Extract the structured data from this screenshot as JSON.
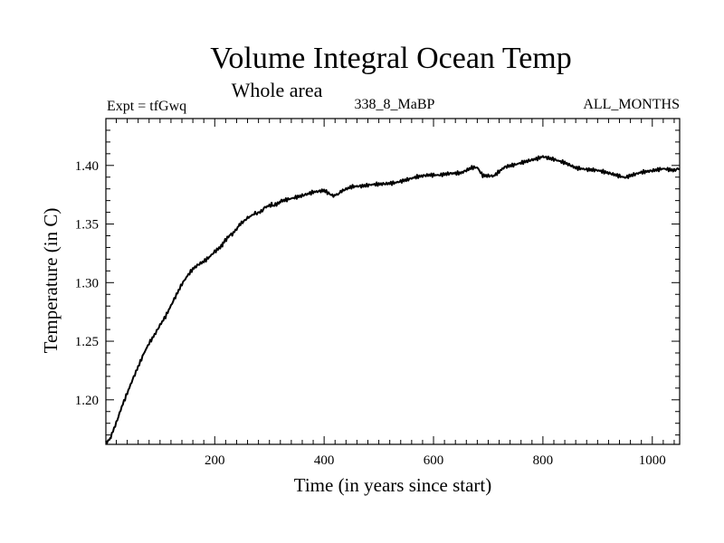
{
  "colors": {
    "line": "#000000",
    "frame": "#000000",
    "background": "#ffffff"
  },
  "chart_data": {
    "type": "line",
    "title": "Volume Integral Ocean Temp",
    "subtitle": "Whole area",
    "expt_label": "Expt = tfGwq",
    "run_label": "338_8_MaBP",
    "months_label": "ALL_MONTHS",
    "xlabel": "Time (in years since start)",
    "ylabel": "Temperature (in C)",
    "xlim": [
      1,
      1050
    ],
    "ylim": [
      1.162,
      1.44
    ],
    "x_ticks": [
      200,
      400,
      600,
      800,
      1000
    ],
    "x_tick_labels": [
      "200",
      "400",
      "600",
      "800",
      "1000"
    ],
    "y_ticks": [
      1.2,
      1.25,
      1.3,
      1.35,
      1.4
    ],
    "y_tick_labels": [
      "1.20",
      "1.25",
      "1.30",
      "1.35",
      "1.40"
    ],
    "x_minor_step": 20,
    "y_minor_step": 0.01,
    "grid": false,
    "series": [
      {
        "name": "Volume Integral Ocean Temp",
        "x": [
          1,
          10,
          20,
          30,
          40,
          50,
          60,
          70,
          80,
          90,
          100,
          110,
          120,
          130,
          140,
          150,
          160,
          170,
          180,
          190,
          200,
          215,
          230,
          245,
          260,
          275,
          290,
          305,
          320,
          340,
          360,
          380,
          400,
          415,
          430,
          450,
          470,
          490,
          510,
          530,
          550,
          570,
          590,
          610,
          630,
          650,
          670,
          680,
          690,
          710,
          730,
          750,
          770,
          790,
          800,
          820,
          840,
          860,
          880,
          900,
          920,
          940,
          950,
          960,
          980,
          1000,
          1020,
          1040,
          1050
        ],
        "y": [
          1.164,
          1.168,
          1.18,
          1.194,
          1.206,
          1.218,
          1.229,
          1.24,
          1.249,
          1.256,
          1.264,
          1.271,
          1.28,
          1.289,
          1.298,
          1.305,
          1.311,
          1.315,
          1.318,
          1.322,
          1.327,
          1.333,
          1.341,
          1.349,
          1.355,
          1.359,
          1.363,
          1.366,
          1.369,
          1.372,
          1.375,
          1.378,
          1.379,
          1.374,
          1.377,
          1.381,
          1.382,
          1.384,
          1.385,
          1.386,
          1.388,
          1.39,
          1.391,
          1.391,
          1.393,
          1.394,
          1.399,
          1.399,
          1.392,
          1.391,
          1.398,
          1.4,
          1.403,
          1.406,
          1.408,
          1.406,
          1.403,
          1.398,
          1.396,
          1.395,
          1.393,
          1.391,
          1.39,
          1.392,
          1.395,
          1.396,
          1.397,
          1.395,
          1.397
        ]
      }
    ]
  }
}
